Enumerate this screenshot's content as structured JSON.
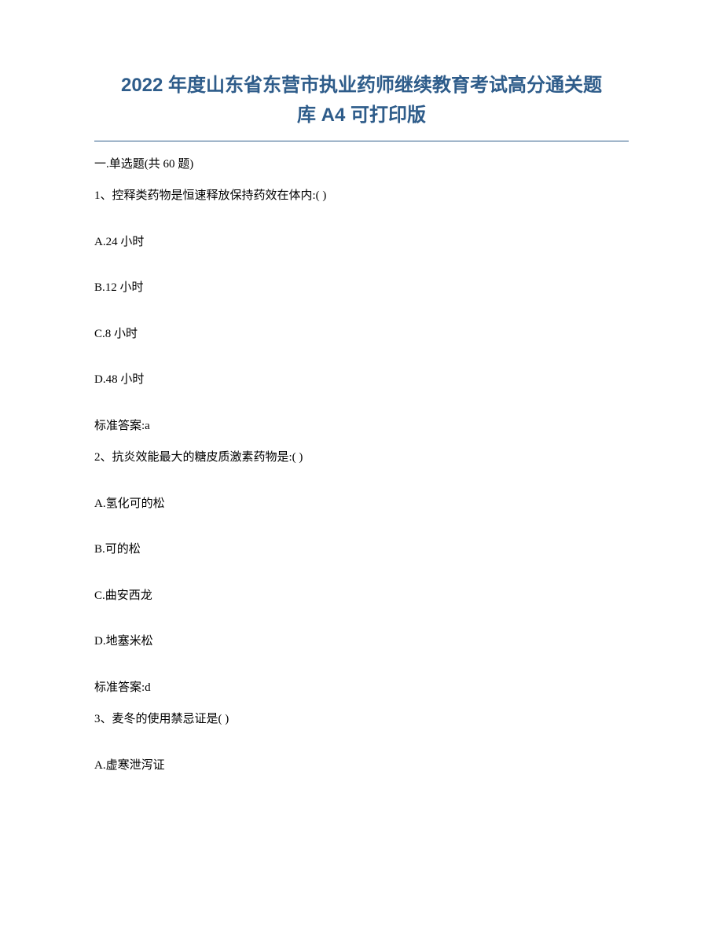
{
  "title_line1": "2022 年度山东省东营市执业药师继续教育考试高分通关题",
  "title_line2": "库 A4 可打印版",
  "section": "一.单选题(共 60 题)",
  "q1": {
    "text": "1、控释类药物是恒速释放保持药效在体内:( )",
    "a": "A.24 小时",
    "b": "B.12 小时",
    "c": "C.8 小时",
    "d": "D.48 小时",
    "answer": "标准答案:a"
  },
  "q2": {
    "text": "2、抗炎效能最大的糖皮质激素药物是:( )",
    "a": "A.氢化可的松",
    "b": "B.可的松",
    "c": "C.曲安西龙",
    "d": "D.地塞米松",
    "answer": "标准答案:d"
  },
  "q3": {
    "text": "3、麦冬的使用禁忌证是( )",
    "a": "A.虚寒泄泻证"
  },
  "colors": {
    "title": "#2e5c8a",
    "text": "#000000",
    "background": "#ffffff",
    "divider": "#2e5c8a"
  },
  "typography": {
    "title_fontsize": 24,
    "body_fontsize": 15,
    "title_fontweight": "bold"
  }
}
